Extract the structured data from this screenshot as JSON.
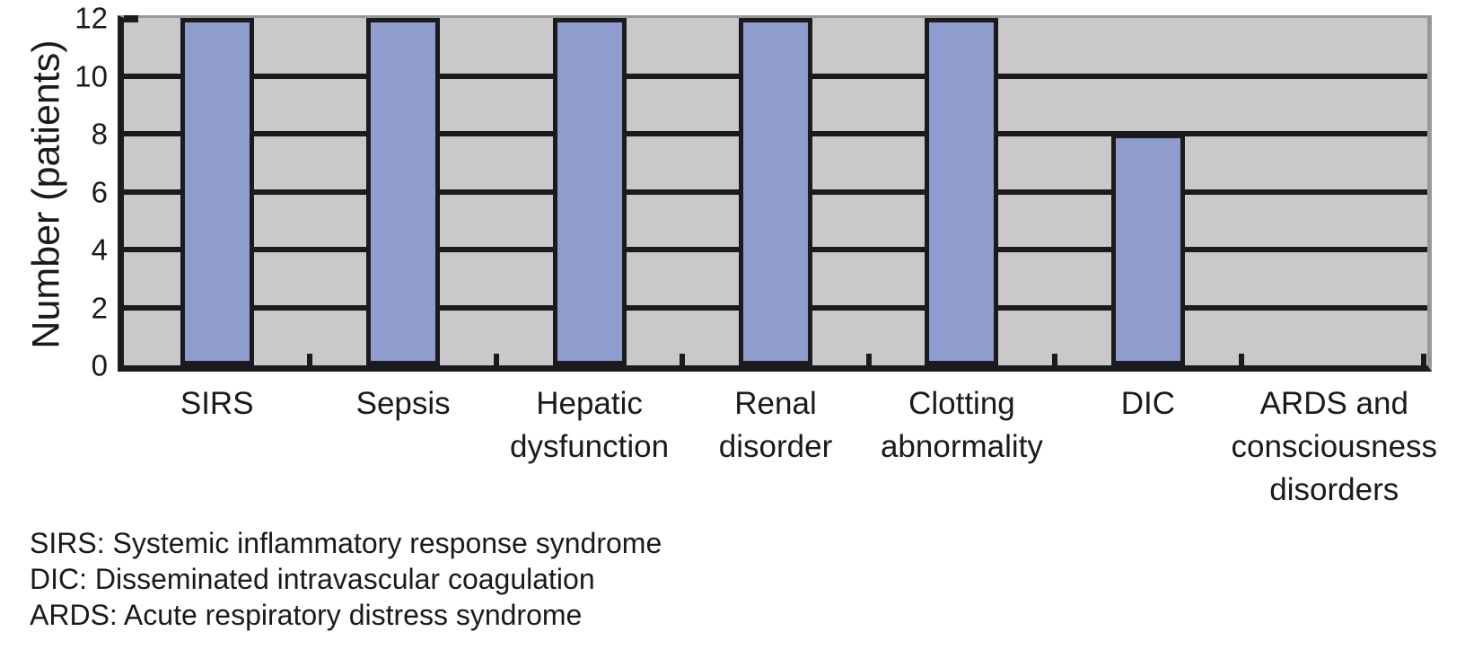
{
  "chart_data": {
    "type": "bar",
    "title": "",
    "xlabel": "",
    "ylabel": "Number (patients)",
    "categories": [
      "SIRS",
      "Sepsis",
      "Hepatic\ndysfunction",
      "Renal\ndisorder",
      "Clotting\nabnormality",
      "DIC",
      "ARDS and\nconsciousness\ndisorders"
    ],
    "values": [
      12,
      12,
      12,
      12,
      12,
      8,
      0
    ],
    "ylim": [
      0,
      12
    ],
    "yticks": [
      0,
      2,
      4,
      6,
      8,
      10,
      12
    ],
    "grid": "horizontal-major",
    "legend_position": "none",
    "colors": {
      "bar_fill": "#8F9CCE",
      "bar_outline": "#1b1b1e",
      "plot_background": "#C9C9CB",
      "gridline": "#1b1b1e",
      "outer_border": "#97989A",
      "text": "#1a1a1a"
    }
  },
  "footnotes": [
    "SIRS: Systemic inflammatory response syndrome",
    "DIC: Disseminated intravascular coagulation",
    "ARDS: Acute respiratory distress syndrome"
  ]
}
